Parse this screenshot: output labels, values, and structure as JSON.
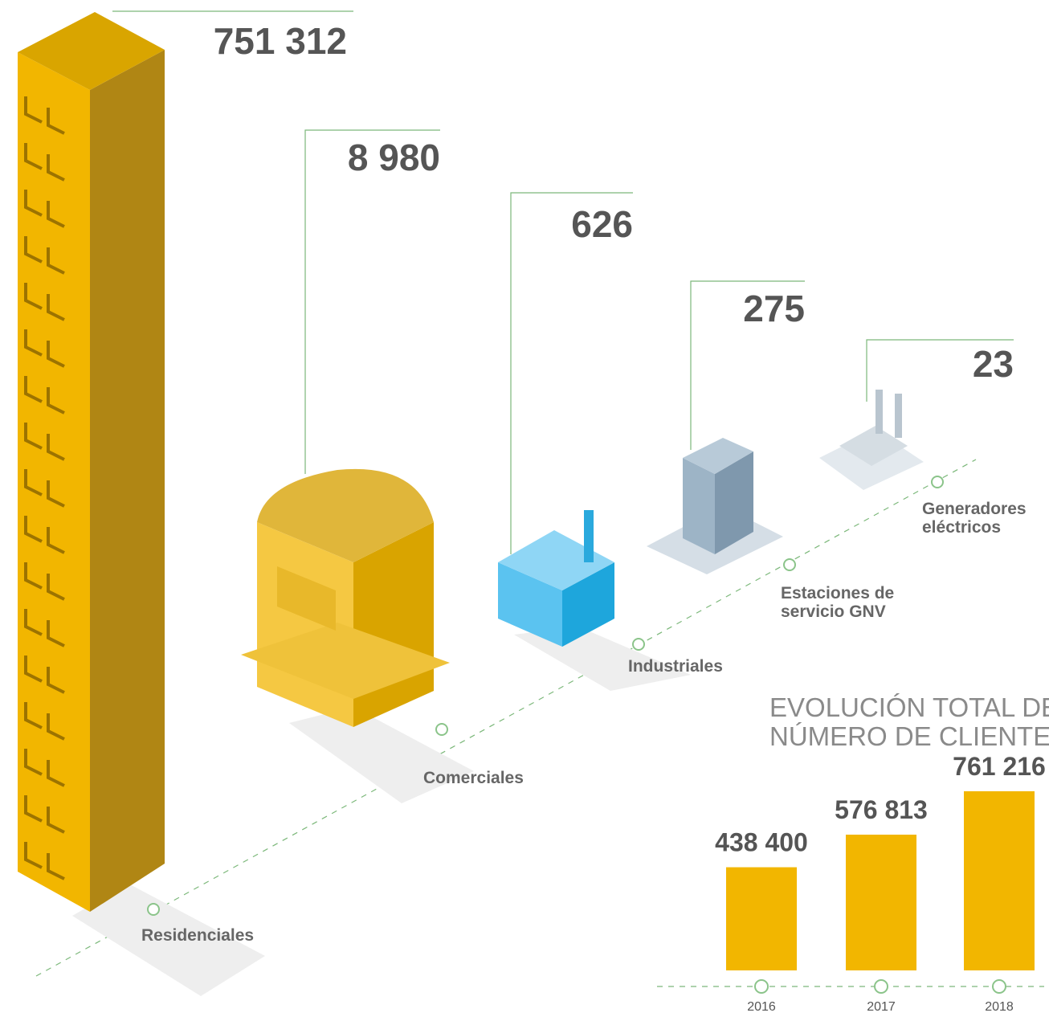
{
  "chart_data": [
    {
      "type": "pictogram",
      "categories": [
        "Residenciales",
        "Comerciales",
        "Industriales",
        "Estaciones de servicio GNV",
        "Generadores eléctricos"
      ],
      "values": [
        751312,
        8980,
        626,
        275,
        23
      ],
      "value_labels": [
        "751 312",
        "8 980",
        "626",
        "275",
        "23"
      ],
      "colors": [
        "#f2b600",
        "#f5c842",
        "#5bc3f0",
        "#9db4c6",
        "#d5dde3"
      ]
    },
    {
      "type": "bar",
      "title": [
        "EVOLUCIÓN TOTAL DEL",
        "NÚMERO DE CLIENTES"
      ],
      "categories": [
        "2016",
        "2017",
        "2018"
      ],
      "values": [
        438400,
        576813,
        761216
      ],
      "value_labels": [
        "438 400",
        "576 813",
        "761 216"
      ],
      "color": "#f2b600"
    }
  ]
}
